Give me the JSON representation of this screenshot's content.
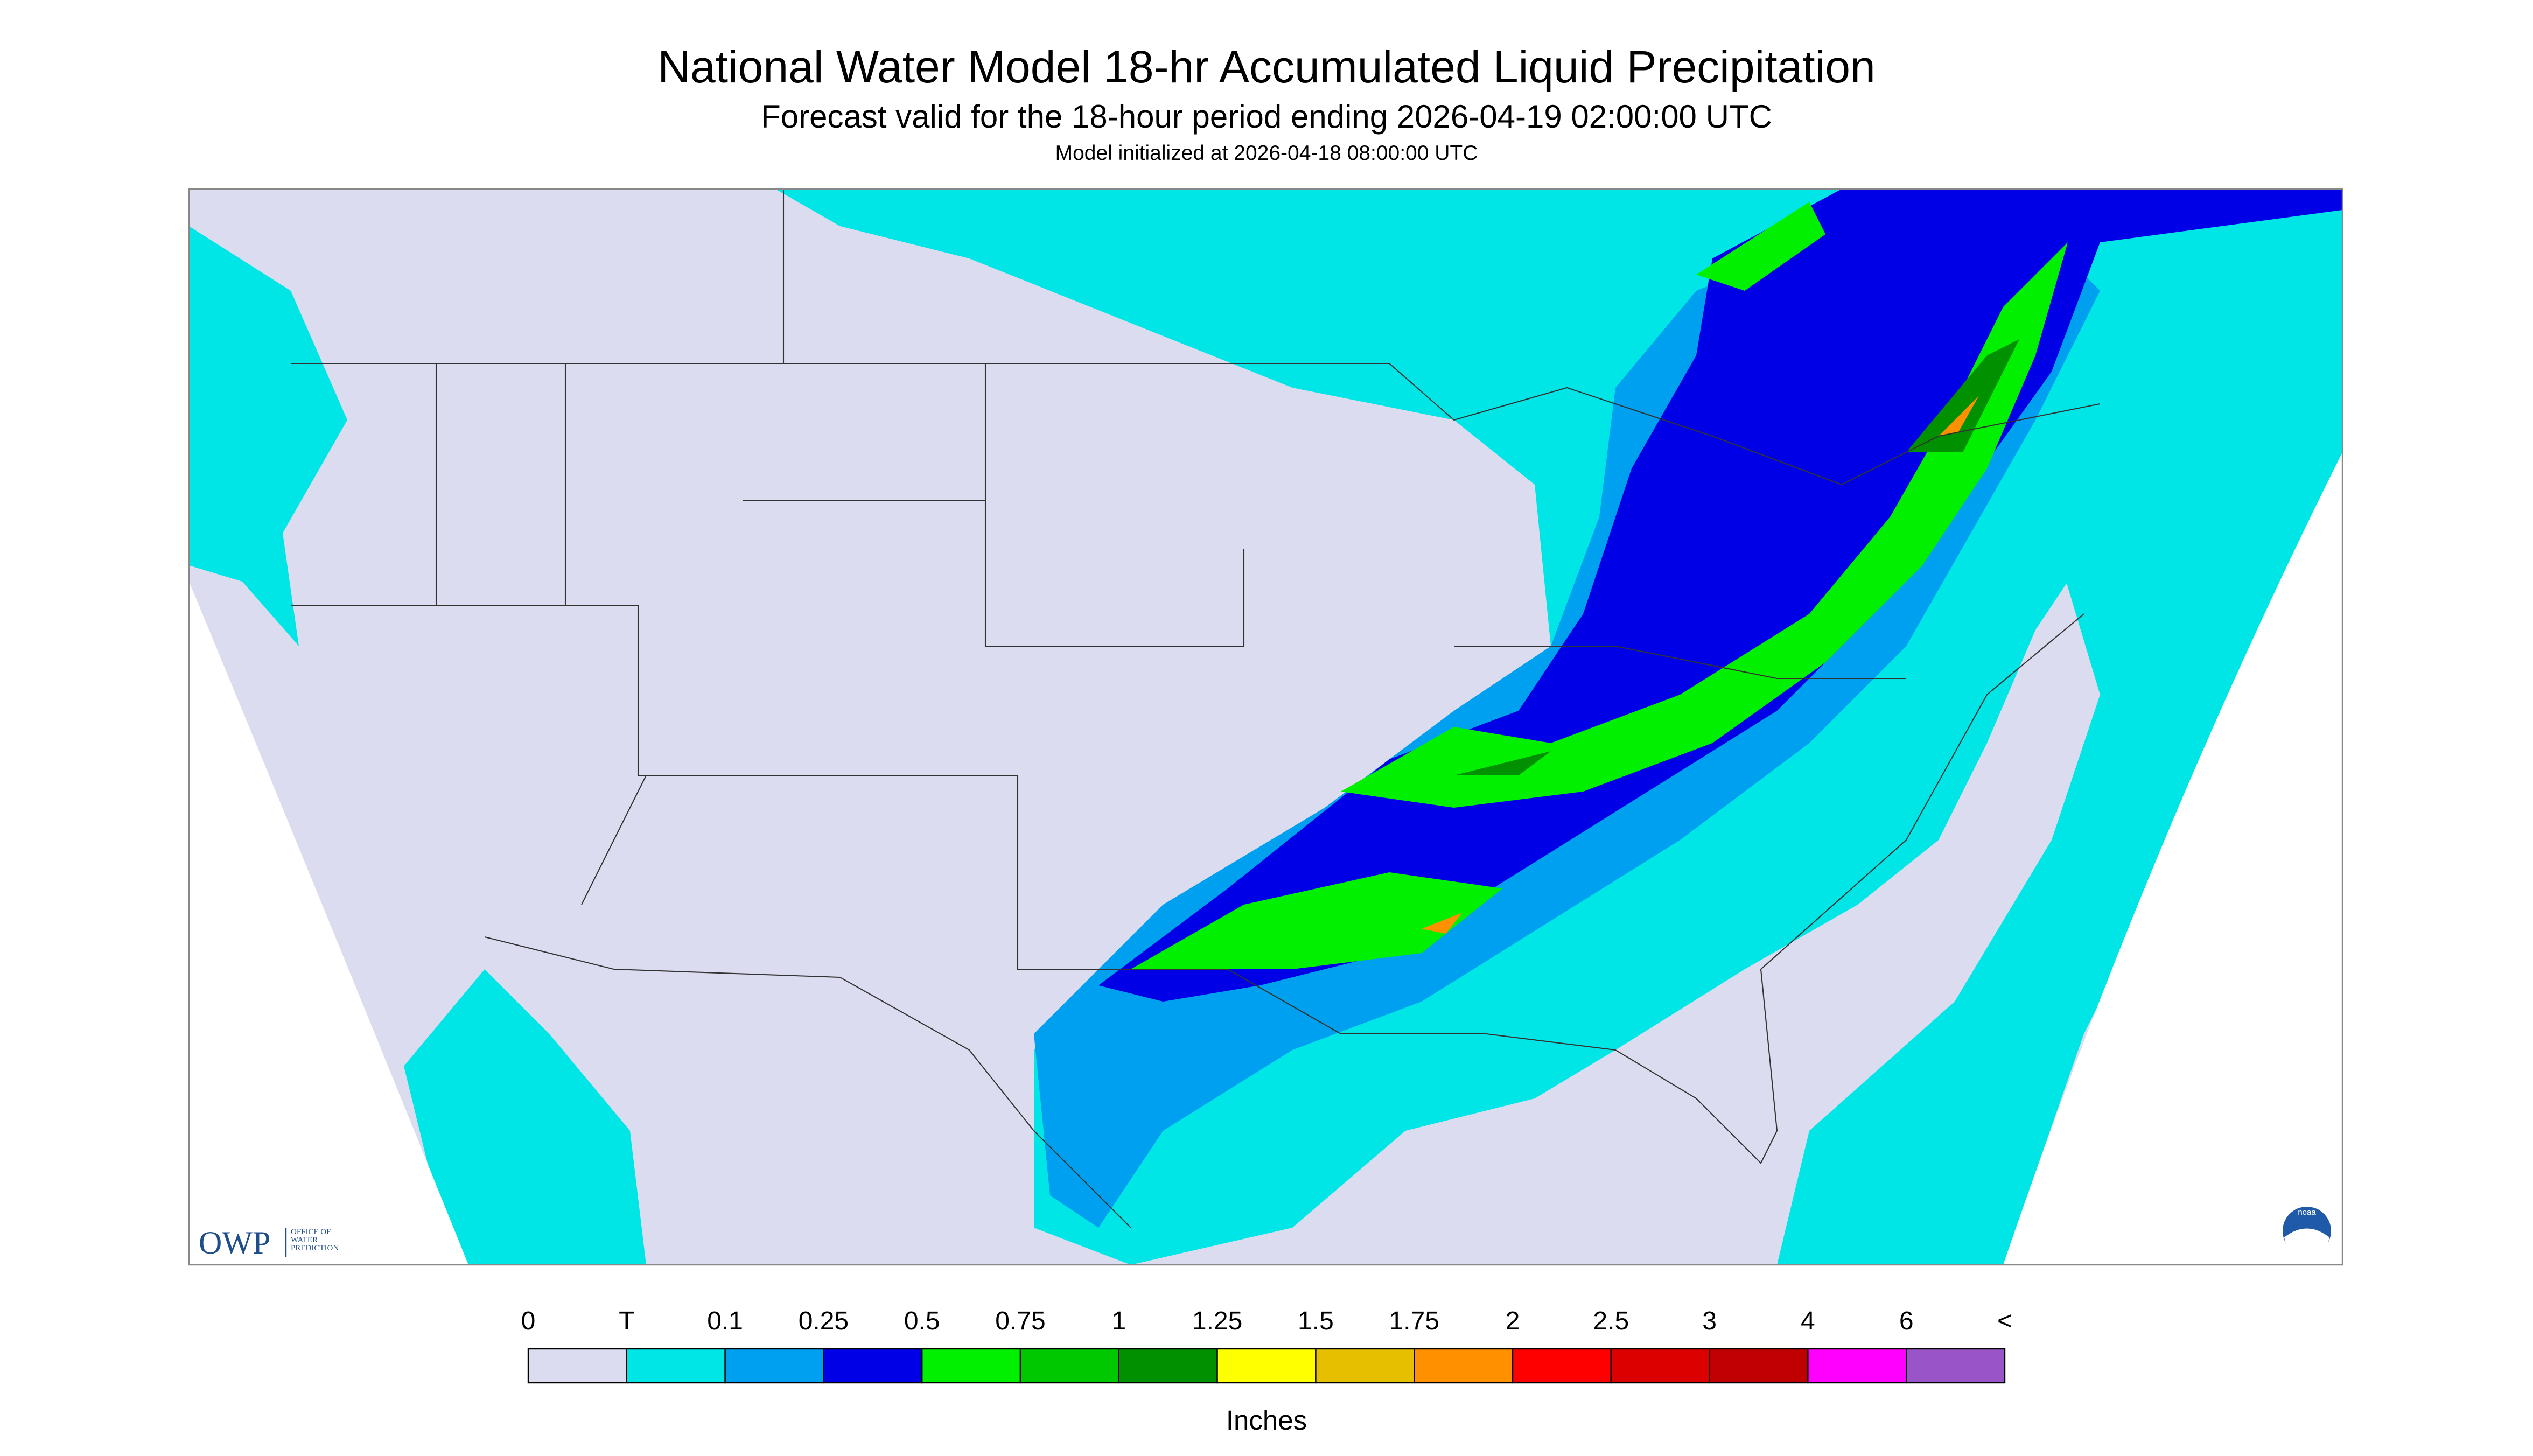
{
  "header": {
    "title": "National Water Model 18-hr Accumulated Liquid Precipitation",
    "subtitle": "Forecast valid for the 18-hour period ending 2026-04-19 02:00:00 UTC",
    "initialized": "Model initialized at 2026-04-18 08:00:00 UTC"
  },
  "legend": {
    "labels": [
      "0",
      "T",
      "0.1",
      "0.25",
      "0.5",
      "0.75",
      "1",
      "1.25",
      "1.5",
      "1.75",
      "2",
      "2.5",
      "3",
      "4",
      "6",
      "<"
    ],
    "colors": [
      "#dcdcf0",
      "#00e6e6",
      "#00a0f0",
      "#0000e6",
      "#00f000",
      "#00c800",
      "#009000",
      "#ffff00",
      "#e6c000",
      "#ff9000",
      "#ff0000",
      "#dc0000",
      "#c00000",
      "#ff00ff",
      "#9955c8"
    ],
    "units": "Inches"
  },
  "logos": {
    "owp": "OWP",
    "owp_lines": [
      "OFFICE OF",
      "WATER",
      "PREDICTION"
    ],
    "noaa": "noaa"
  }
}
